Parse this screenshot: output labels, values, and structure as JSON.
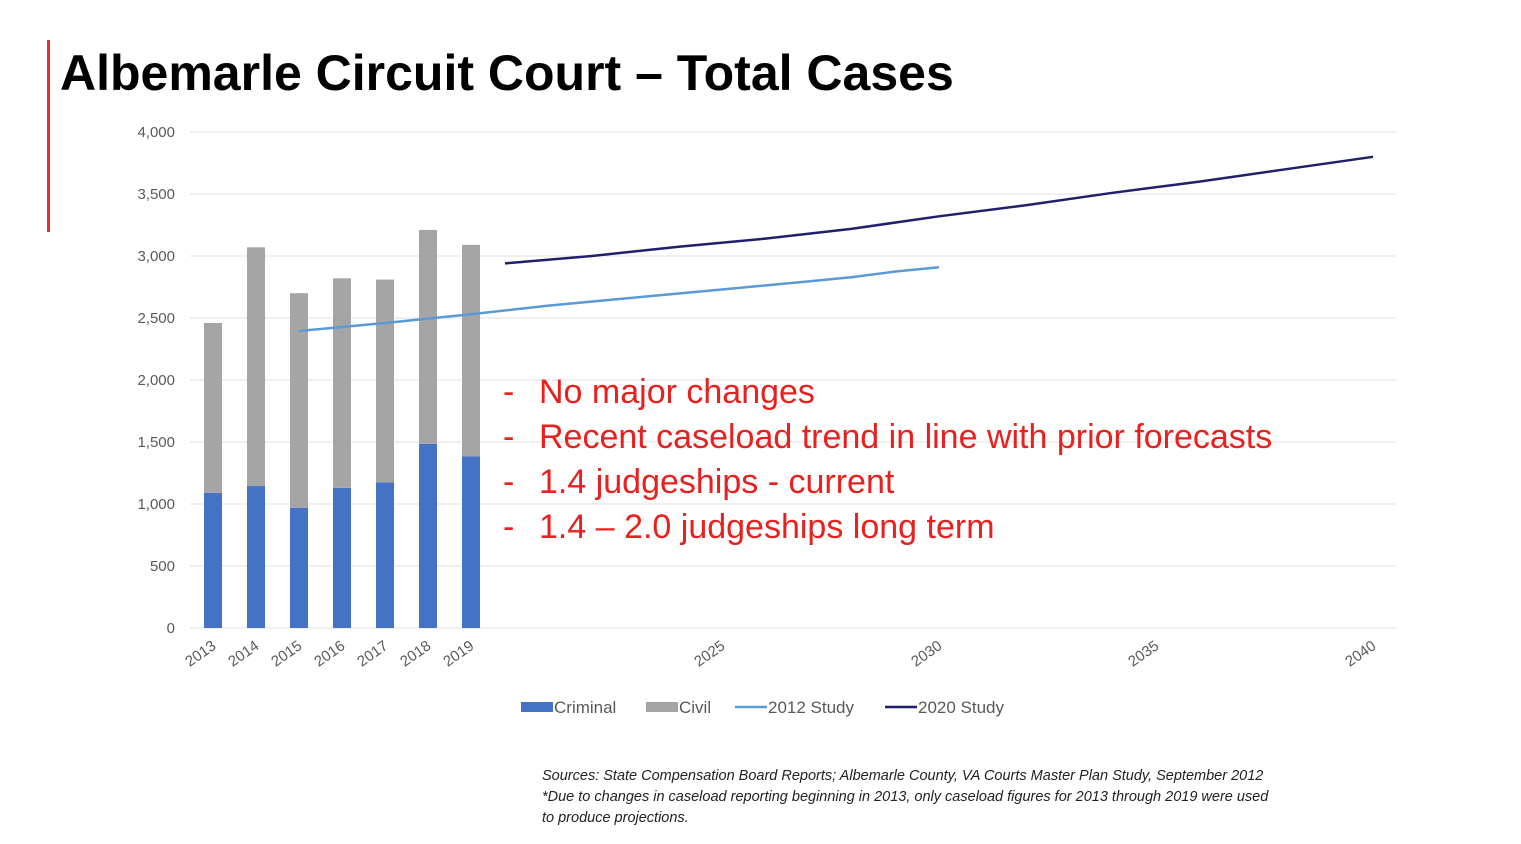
{
  "title": "Albemarle Circuit Court – Total Cases",
  "colors": {
    "accent_bar": "#e03030",
    "criminal": "#4472c4",
    "civil": "#a5a5a5",
    "study_2012": "#5b9bd5",
    "study_2020": "#1f1f6b",
    "annotation_text": "#e8201e",
    "grid": "#e2e2e2",
    "axis_text": "#595959"
  },
  "chart_data": {
    "type": "bar",
    "stacked": true,
    "ylim": [
      0,
      4000
    ],
    "xlim": [
      2013,
      2040
    ],
    "y_ticks": [
      0,
      500,
      1000,
      1500,
      2000,
      2500,
      3000,
      3500,
      4000
    ],
    "y_tick_labels": [
      "0",
      "500",
      "1,000",
      "1,500",
      "2,000",
      "2,500",
      "3,000",
      "3,500",
      "4,000"
    ],
    "x_tick_labels": [
      "2013",
      "2014",
      "2015",
      "2016",
      "2017",
      "2018",
      "2019",
      "2025",
      "2030",
      "2035",
      "2040"
    ],
    "x_tick_values": [
      2013,
      2014,
      2015,
      2016,
      2017,
      2018,
      2019,
      2025,
      2030,
      2035,
      2040
    ],
    "grid": true,
    "legend_position": "bottom",
    "categories": [
      "2013",
      "2014",
      "2015",
      "2016",
      "2017",
      "2018",
      "2019"
    ],
    "bar_series": [
      {
        "name": "Criminal",
        "color": "#4472c4",
        "values": [
          1090,
          1145,
          970,
          1130,
          1175,
          1485,
          1385
        ]
      },
      {
        "name": "Civil",
        "color": "#a5a5a5",
        "values": [
          1370,
          1925,
          1730,
          1690,
          1635,
          1725,
          1705
        ]
      }
    ],
    "line_series": [
      {
        "name": "2012 Study",
        "color": "#5b9bd5",
        "x": [
          2015,
          2017,
          2019,
          2021,
          2023,
          2025,
          2027,
          2028,
          2029,
          2030
        ],
        "y": [
          2395,
          2460,
          2530,
          2600,
          2665,
          2730,
          2795,
          2830,
          2875,
          2910
        ]
      },
      {
        "name": "2020 Study",
        "color": "#1f1f6b",
        "x": [
          2020,
          2022,
          2024,
          2026,
          2028,
          2030,
          2032,
          2034,
          2036,
          2038,
          2040
        ],
        "y": [
          2940,
          3000,
          3075,
          3140,
          3220,
          3320,
          3410,
          3510,
          3600,
          3700,
          3800
        ]
      }
    ],
    "legend": [
      "Criminal",
      "Civil",
      "2012 Study",
      "2020 Study"
    ]
  },
  "annotations": [
    {
      "dash": "-",
      "text": "No major changes"
    },
    {
      "dash": "-",
      "text": "Recent caseload trend in line with prior forecasts"
    },
    {
      "dash": "-",
      "text": "1.4 judgeships - current"
    },
    {
      "dash": "-",
      "text": "1.4 – 2.0 judgeships long term"
    }
  ],
  "sources": {
    "line1": "Sources:  State Compensation Board Reports; Albemarle County, VA Courts Master Plan Study, September 2012",
    "line2": "*Due to changes in caseload reporting beginning in 2013, only caseload figures for 2013 through 2019 were used",
    "line3": "to produce projections."
  }
}
